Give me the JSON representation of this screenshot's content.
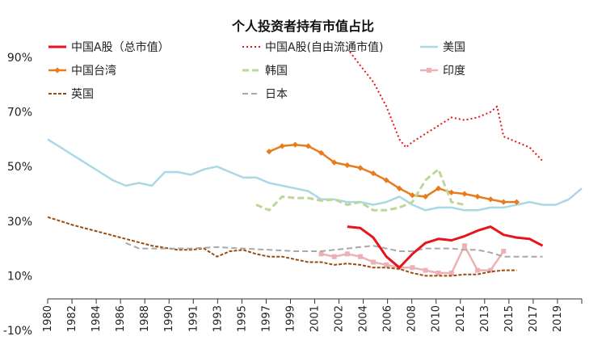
{
  "chart_data": {
    "type": "line",
    "title": "个人投资者持有市值占比",
    "xlabel": "",
    "ylabel": "",
    "ylim": [
      -10,
      90
    ],
    "xlim": [
      1980,
      2021
    ],
    "y_ticks": [
      {
        "label": "90%",
        "value": 90
      },
      {
        "label": "70%",
        "value": 70
      },
      {
        "label": "50%",
        "value": 50
      },
      {
        "label": "30%",
        "value": 30
      },
      {
        "label": "10%",
        "value": 10
      },
      {
        "label": "-10%",
        "value": -10
      }
    ],
    "x_tick_labels": [
      "1980",
      "1982",
      "1984",
      "1986",
      "1988",
      "1990",
      "1991",
      "1993",
      "1995",
      "1997",
      "1999",
      "2001",
      "2002",
      "2004",
      "2006",
      "2008",
      "2010",
      "2012",
      "2013",
      "2015",
      "2017",
      "2019"
    ],
    "legend": [
      {
        "name": "中国A股（总市值）",
        "color": "#e8141b"
      },
      {
        "name": "中国A股(自由流通市值)",
        "color": "#e8141b"
      },
      {
        "name": "美国",
        "color": "#a9d8e6"
      },
      {
        "name": "中国台湾",
        "color": "#e87b1c"
      },
      {
        "name": "韩国",
        "color": "#bed69a"
      },
      {
        "name": "印度",
        "color": "#ebb1b5"
      },
      {
        "name": "英国",
        "color": "#9a4b0e"
      },
      {
        "name": "日本",
        "color": "#a8a8a8"
      }
    ],
    "series": [
      {
        "name": "中国A股(自由流通市值)",
        "color": "#e8141b",
        "x": [
          2003.2,
          2004,
          2005,
          2006,
          2007,
          2007.5,
          2008,
          2009,
          2010,
          2011,
          2012,
          2013,
          2014,
          2014.5,
          2015,
          2016,
          2017,
          2018
        ],
        "values": [
          92,
          87,
          81,
          72,
          60,
          57,
          59,
          62,
          65,
          68,
          67,
          68,
          70,
          72,
          61,
          59,
          57,
          52
        ]
      },
      {
        "name": "美国",
        "color": "#a9d8e6",
        "x": [
          1980,
          1981,
          1982,
          1983,
          1984,
          1985,
          1986,
          1987,
          1988,
          1989,
          1990,
          1991,
          1992,
          1993,
          1994,
          1995,
          1996,
          1997,
          1998,
          1999,
          2000,
          2001,
          2002,
          2003,
          2004,
          2005,
          2006,
          2007,
          2008,
          2009,
          2010,
          2011,
          2012,
          2013,
          2014,
          2015,
          2016,
          2017,
          2018,
          2019,
          2020,
          2021
        ],
        "values": [
          60,
          57,
          54,
          51,
          48,
          45,
          43,
          44,
          43,
          48,
          48,
          47,
          49,
          50,
          48,
          46,
          46,
          44,
          43,
          42,
          41,
          38,
          38,
          37,
          37,
          36,
          37,
          39,
          36,
          34,
          35,
          35,
          34,
          34,
          35,
          35,
          36,
          37,
          36,
          36,
          38,
          42
        ]
      },
      {
        "name": "中国台湾",
        "color": "#e87b1c",
        "x": [
          1997,
          1998,
          1999,
          2000,
          2001,
          2002,
          2003,
          2004,
          2005,
          2006,
          2007,
          2008,
          2009,
          2010,
          2011,
          2012,
          2013,
          2014,
          2015,
          2016
        ],
        "values": [
          55.5,
          57.5,
          58,
          57.5,
          55,
          51.5,
          50.5,
          49.5,
          47.5,
          45,
          42,
          39.5,
          39,
          42,
          40.5,
          40,
          39,
          38,
          37,
          37
        ]
      },
      {
        "name": "韩国",
        "color": "#bed69a",
        "x": [
          1996,
          1997,
          1998,
          1999,
          2000,
          2001,
          2002,
          2003,
          2004,
          2005,
          2006,
          2007,
          2008,
          2009,
          2009.5,
          2010,
          2010.5,
          2011,
          2012
        ],
        "values": [
          36,
          34,
          39,
          38.5,
          38.5,
          37.5,
          38,
          36,
          37,
          34,
          34,
          35,
          37,
          45,
          47,
          49,
          43,
          37,
          36
        ]
      },
      {
        "name": "印度",
        "color": "#ebb1b5",
        "x": [
          2001,
          2002,
          2003,
          2004,
          2005,
          2006,
          2007,
          2008,
          2009,
          2010,
          2011,
          2012,
          2013,
          2014,
          2015
        ],
        "values": [
          18,
          17,
          18,
          17,
          15,
          14,
          13,
          13,
          12,
          11,
          11,
          21,
          12,
          12,
          19
        ]
      },
      {
        "name": "英国",
        "color": "#9a4b0e",
        "x": [
          1980,
          1982,
          1984,
          1986,
          1988,
          1990,
          1991,
          1992,
          1993,
          1994,
          1995,
          1996,
          1997,
          1998,
          1999,
          2000,
          2001,
          2002,
          2003,
          2004,
          2005,
          2006,
          2007,
          2008,
          2009,
          2010,
          2011,
          2012,
          2013,
          2014,
          2015,
          2016
        ],
        "values": [
          31.5,
          28.5,
          26,
          23.5,
          21,
          19.5,
          19.5,
          20,
          17,
          19,
          19.5,
          18,
          17,
          17,
          16,
          15,
          15,
          14,
          14.5,
          14,
          13,
          13,
          12.5,
          11,
          10,
          10,
          10,
          10.5,
          10.5,
          11.5,
          12,
          12
        ]
      },
      {
        "name": "日本",
        "color": "#a8a8a8",
        "x": [
          1986,
          1987,
          1990,
          1991,
          1993,
          1995,
          1997,
          1999,
          2001,
          2003,
          2005,
          2006,
          2007,
          2008,
          2009,
          2010,
          2011,
          2012,
          2013,
          2014,
          2015,
          2016,
          2017,
          2018
        ],
        "values": [
          22,
          20,
          20,
          20,
          20.5,
          20,
          19.5,
          19,
          19,
          20,
          21,
          20,
          19,
          19,
          20,
          20,
          20,
          19.5,
          19.5,
          18.5,
          17,
          17,
          17,
          17
        ]
      },
      {
        "name": "中国A股（总市值）",
        "color": "#e8141b",
        "x": [
          2003,
          2004,
          2005,
          2006,
          2007,
          2008,
          2009,
          2010,
          2011,
          2012,
          2013,
          2014,
          2015,
          2016,
          2017,
          2018
        ],
        "values": [
          28,
          27.5,
          24,
          17,
          13,
          18,
          22,
          23.5,
          23,
          24.5,
          26.5,
          28,
          25,
          24,
          23.5,
          21
        ]
      }
    ]
  }
}
